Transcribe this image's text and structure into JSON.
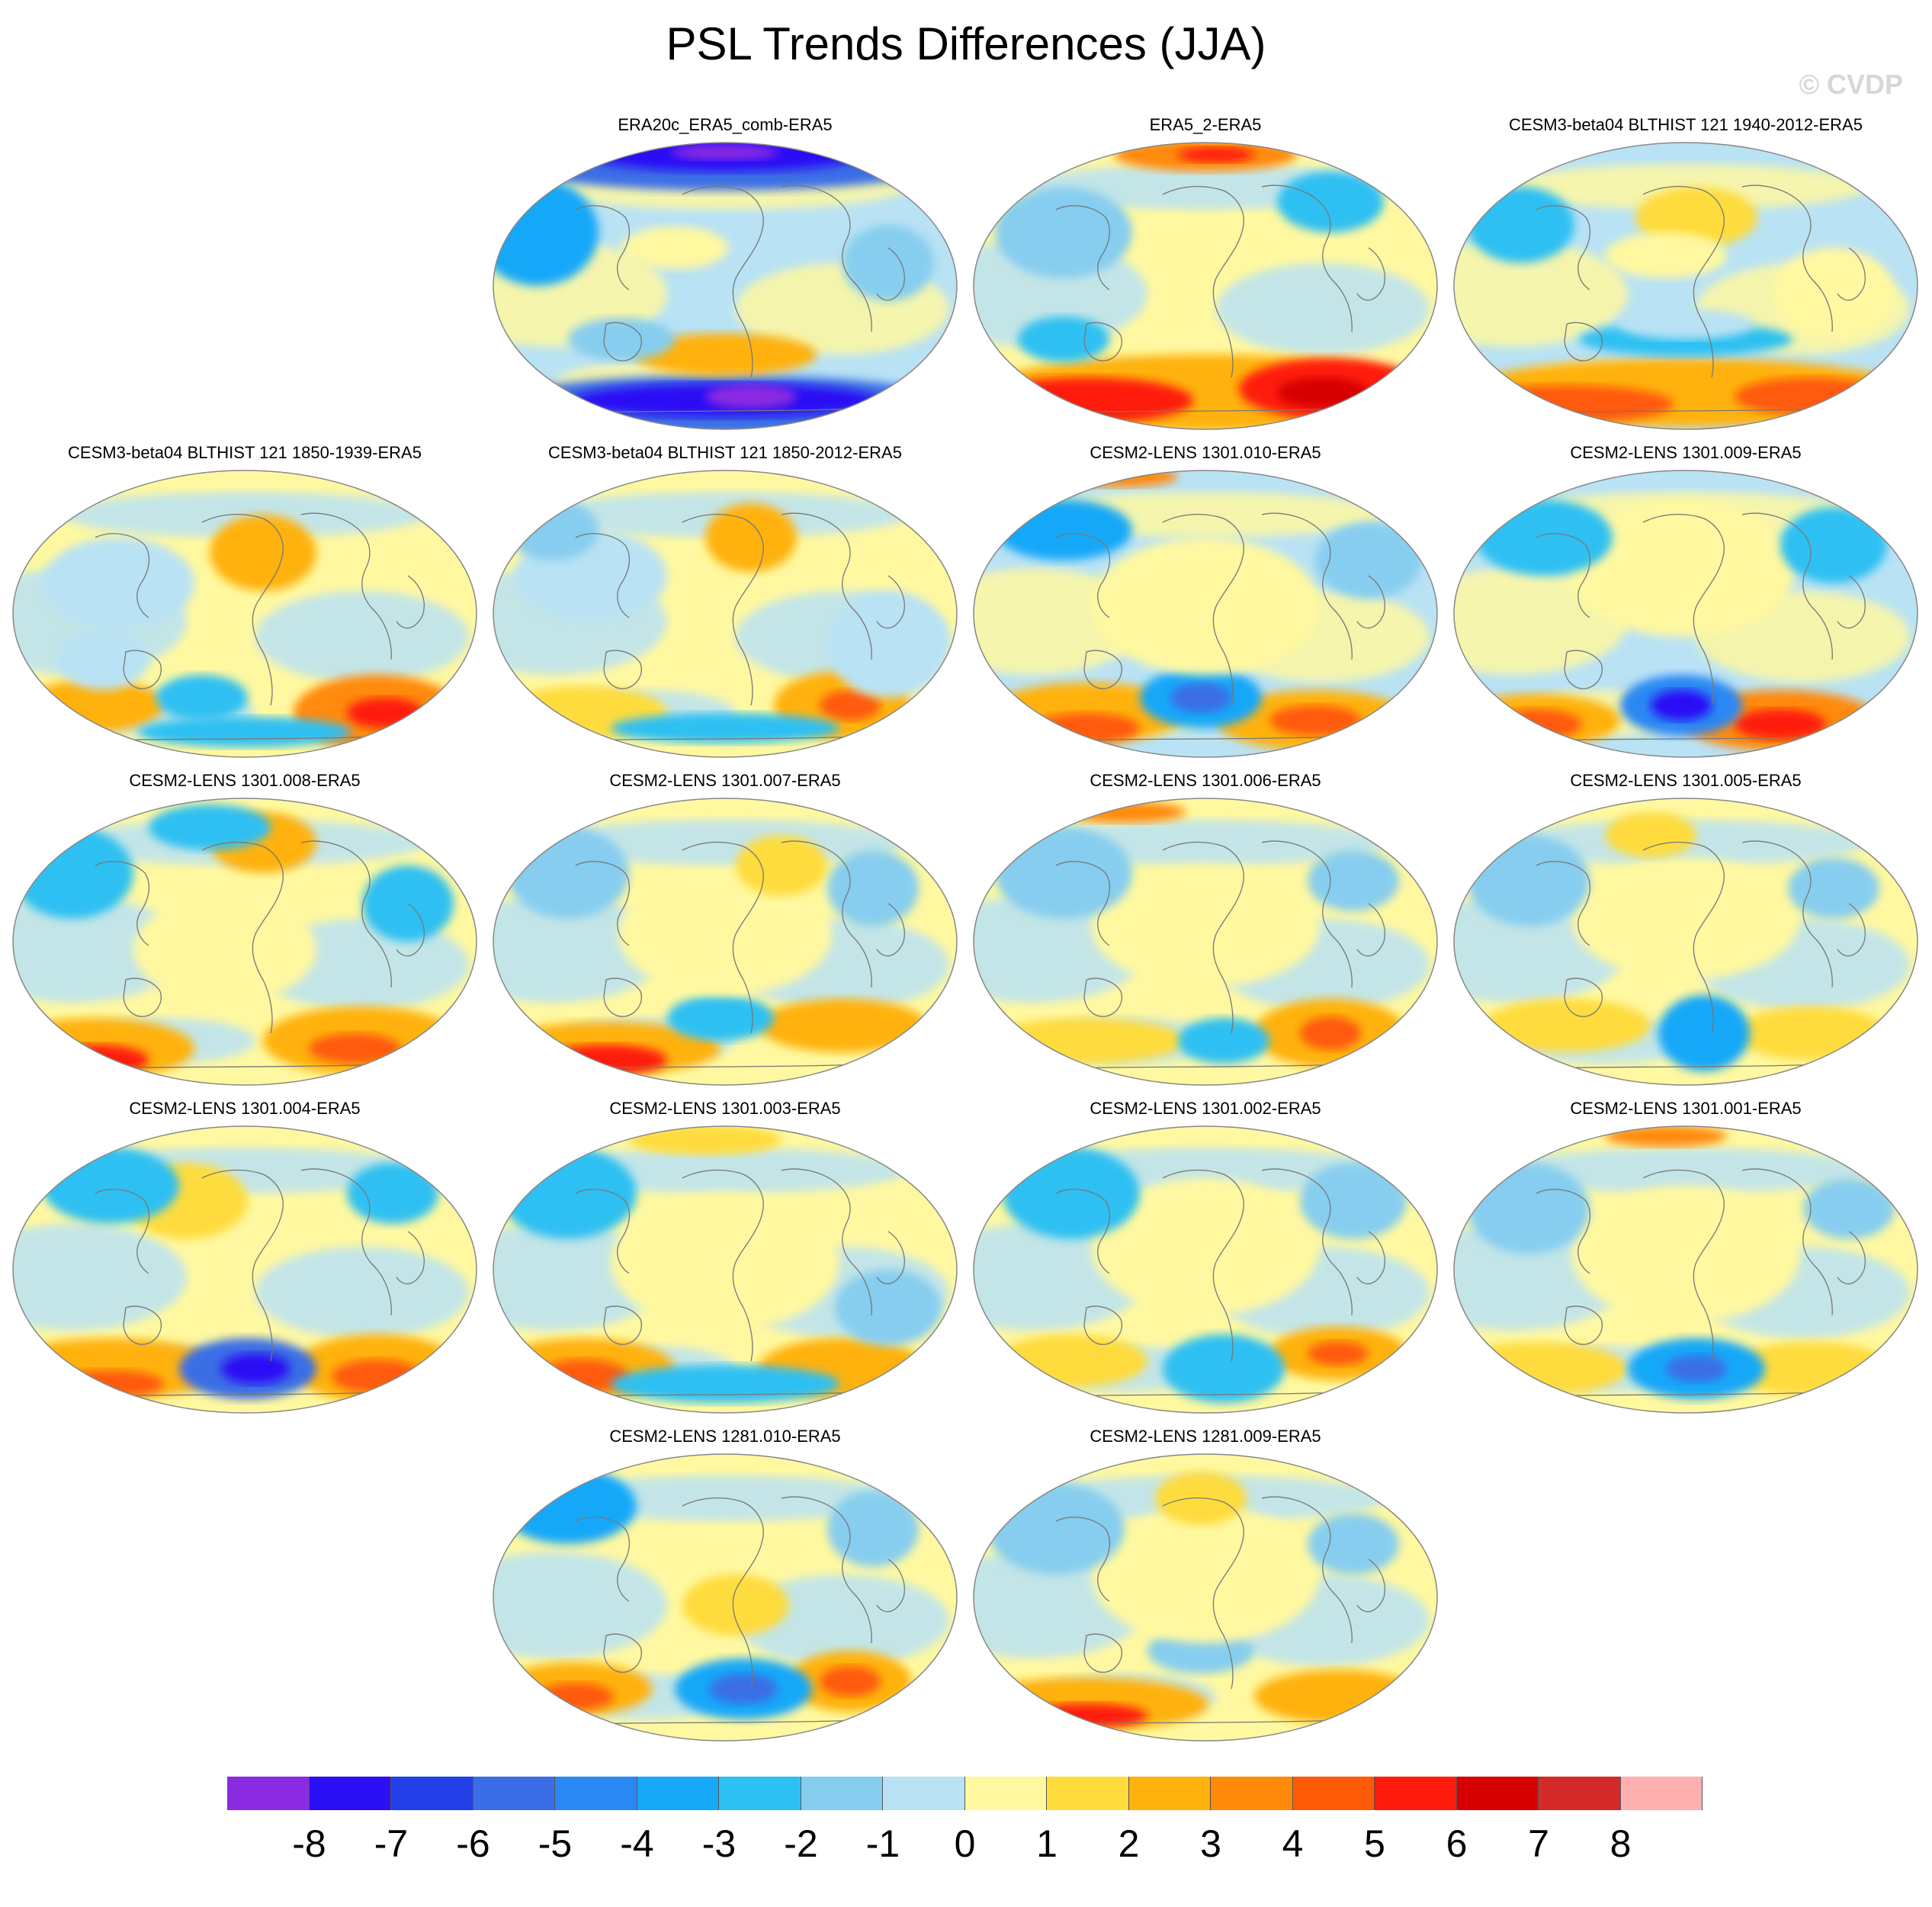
{
  "title": "PSL Trends Differences (JJA)",
  "watermark": "© CVDP",
  "panels": [
    {
      "title": "ERA20c_ERA5_comb-ERA5",
      "pattern": "era20c"
    },
    {
      "title": "ERA5_2-ERA5",
      "pattern": "era5b"
    },
    {
      "title": "CESM3-beta04 BLTHIST 121 1940-2012-ERA5",
      "pattern": "c3a"
    },
    {
      "title": "CESM3-beta04 BLTHIST 121 1850-1939-ERA5",
      "pattern": "c3b"
    },
    {
      "title": "CESM3-beta04 BLTHIST 121 1850-2012-ERA5",
      "pattern": "c3c"
    },
    {
      "title": "CESM2-LENS 1301.010-ERA5",
      "pattern": "l10"
    },
    {
      "title": "CESM2-LENS 1301.009-ERA5",
      "pattern": "l09"
    },
    {
      "title": "CESM2-LENS 1301.008-ERA5",
      "pattern": "l08"
    },
    {
      "title": "CESM2-LENS 1301.007-ERA5",
      "pattern": "l07"
    },
    {
      "title": "CESM2-LENS 1301.006-ERA5",
      "pattern": "l06"
    },
    {
      "title": "CESM2-LENS 1301.005-ERA5",
      "pattern": "l05"
    },
    {
      "title": "CESM2-LENS 1301.004-ERA5",
      "pattern": "l04"
    },
    {
      "title": "CESM2-LENS 1301.003-ERA5",
      "pattern": "l03"
    },
    {
      "title": "CESM2-LENS 1301.002-ERA5",
      "pattern": "l02"
    },
    {
      "title": "CESM2-LENS 1301.001-ERA5",
      "pattern": "l01"
    },
    {
      "title": "CESM2-LENS 1281.010-ERA5",
      "pattern": "m10"
    },
    {
      "title": "CESM2-LENS 1281.009-ERA5",
      "pattern": "m09"
    }
  ],
  "colorbar": {
    "labels": [
      "-8",
      "-7",
      "-6",
      "-5",
      "-4",
      "-3",
      "-2",
      "-1",
      "0",
      "1",
      "2",
      "3",
      "4",
      "5",
      "6",
      "7",
      "8"
    ],
    "colors": [
      "#8a2be2",
      "#2b0ff5",
      "#2340e8",
      "#3b6ee6",
      "#2a88f4",
      "#18a8f8",
      "#2ec0f2",
      "#86cdef",
      "#b9e2f4",
      "#fff8a0",
      "#ffdc3c",
      "#ffb20e",
      "#ff8a0a",
      "#ff5a08",
      "#ff1c0c",
      "#d60000",
      "#d42a2a",
      "#ffb0b0"
    ]
  }
}
